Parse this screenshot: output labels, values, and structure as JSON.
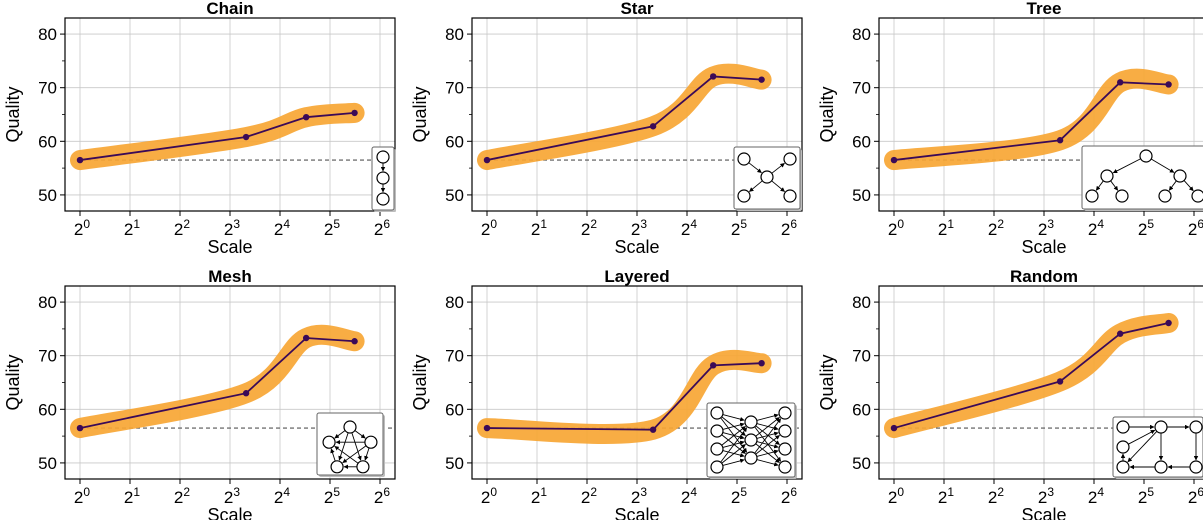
{
  "figure": {
    "line_color": "#3b0a57",
    "band_color": "#f7a634",
    "baseline_color": "#555555",
    "grid_color": "#c8c8c8"
  },
  "chart_data": [
    {
      "type": "line",
      "title": "Chain",
      "xlabel": "Scale",
      "ylabel": "Quality",
      "x_scale": "log2",
      "xlim": [
        1,
        64
      ],
      "ylim": [
        47,
        83
      ],
      "grid": true,
      "xticks": [
        {
          "base": "2",
          "exp": "0"
        },
        {
          "base": "2",
          "exp": "1"
        },
        {
          "base": "2",
          "exp": "2"
        },
        {
          "base": "2",
          "exp": "3"
        },
        {
          "base": "2",
          "exp": "4"
        },
        {
          "base": "2",
          "exp": "5"
        },
        {
          "base": "2",
          "exp": "6"
        }
      ],
      "yticks": [
        "50",
        "60",
        "70",
        "80"
      ],
      "x": [
        1,
        10,
        23,
        45
      ],
      "y": [
        56.5,
        60.8,
        64.5,
        65.3
      ],
      "baseline": 56.5,
      "inset_topology": "chain"
    },
    {
      "type": "line",
      "title": "Star",
      "xlabel": "Scale",
      "ylabel": "Quality",
      "x_scale": "log2",
      "xlim": [
        1,
        64
      ],
      "ylim": [
        47,
        83
      ],
      "grid": true,
      "xticks": [
        {
          "base": "2",
          "exp": "0"
        },
        {
          "base": "2",
          "exp": "1"
        },
        {
          "base": "2",
          "exp": "2"
        },
        {
          "base": "2",
          "exp": "3"
        },
        {
          "base": "2",
          "exp": "4"
        },
        {
          "base": "2",
          "exp": "5"
        },
        {
          "base": "2",
          "exp": "6"
        }
      ],
      "yticks": [
        "50",
        "60",
        "70",
        "80"
      ],
      "x": [
        1,
        10,
        23,
        45
      ],
      "y": [
        56.5,
        62.8,
        72.1,
        71.5
      ],
      "baseline": 56.5,
      "inset_topology": "star"
    },
    {
      "type": "line",
      "title": "Tree",
      "xlabel": "Scale",
      "ylabel": "Quality",
      "x_scale": "log2",
      "xlim": [
        1,
        64
      ],
      "ylim": [
        47,
        83
      ],
      "grid": true,
      "xticks": [
        {
          "base": "2",
          "exp": "0"
        },
        {
          "base": "2",
          "exp": "1"
        },
        {
          "base": "2",
          "exp": "2"
        },
        {
          "base": "2",
          "exp": "3"
        },
        {
          "base": "2",
          "exp": "4"
        },
        {
          "base": "2",
          "exp": "5"
        },
        {
          "base": "2",
          "exp": "6"
        }
      ],
      "yticks": [
        "50",
        "60",
        "70",
        "80"
      ],
      "x": [
        1,
        10,
        23,
        45
      ],
      "y": [
        56.5,
        60.2,
        71.0,
        70.6
      ],
      "baseline": 56.5,
      "inset_topology": "tree"
    },
    {
      "type": "line",
      "title": "Mesh",
      "xlabel": "Scale",
      "ylabel": "Quality",
      "x_scale": "log2",
      "xlim": [
        1,
        64
      ],
      "ylim": [
        47,
        83
      ],
      "grid": true,
      "xticks": [
        {
          "base": "2",
          "exp": "0"
        },
        {
          "base": "2",
          "exp": "1"
        },
        {
          "base": "2",
          "exp": "2"
        },
        {
          "base": "2",
          "exp": "3"
        },
        {
          "base": "2",
          "exp": "4"
        },
        {
          "base": "2",
          "exp": "5"
        },
        {
          "base": "2",
          "exp": "6"
        }
      ],
      "yticks": [
        "50",
        "60",
        "70",
        "80"
      ],
      "x": [
        1,
        10,
        23,
        45
      ],
      "y": [
        56.5,
        63.0,
        73.3,
        72.7
      ],
      "baseline": 56.5,
      "inset_topology": "mesh"
    },
    {
      "type": "line",
      "title": "Layered",
      "xlabel": "Scale",
      "ylabel": "Quality",
      "x_scale": "log2",
      "xlim": [
        1,
        64
      ],
      "ylim": [
        47,
        83
      ],
      "grid": true,
      "xticks": [
        {
          "base": "2",
          "exp": "0"
        },
        {
          "base": "2",
          "exp": "1"
        },
        {
          "base": "2",
          "exp": "2"
        },
        {
          "base": "2",
          "exp": "3"
        },
        {
          "base": "2",
          "exp": "4"
        },
        {
          "base": "2",
          "exp": "5"
        },
        {
          "base": "2",
          "exp": "6"
        }
      ],
      "yticks": [
        "50",
        "60",
        "70",
        "80"
      ],
      "x": [
        1,
        10,
        23,
        45
      ],
      "y": [
        56.5,
        56.2,
        68.2,
        68.6
      ],
      "baseline": 56.5,
      "inset_topology": "layered"
    },
    {
      "type": "line",
      "title": "Random",
      "xlabel": "Scale",
      "ylabel": "Quality",
      "x_scale": "log2",
      "xlim": [
        1,
        64
      ],
      "ylim": [
        47,
        83
      ],
      "grid": true,
      "xticks": [
        {
          "base": "2",
          "exp": "0"
        },
        {
          "base": "2",
          "exp": "1"
        },
        {
          "base": "2",
          "exp": "2"
        },
        {
          "base": "2",
          "exp": "3"
        },
        {
          "base": "2",
          "exp": "4"
        },
        {
          "base": "2",
          "exp": "5"
        },
        {
          "base": "2",
          "exp": "6"
        }
      ],
      "yticks": [
        "50",
        "60",
        "70",
        "80"
      ],
      "x": [
        1,
        10,
        23,
        45
      ],
      "y": [
        56.5,
        65.2,
        74.1,
        76.1
      ],
      "baseline": 56.5,
      "inset_topology": "random"
    }
  ]
}
